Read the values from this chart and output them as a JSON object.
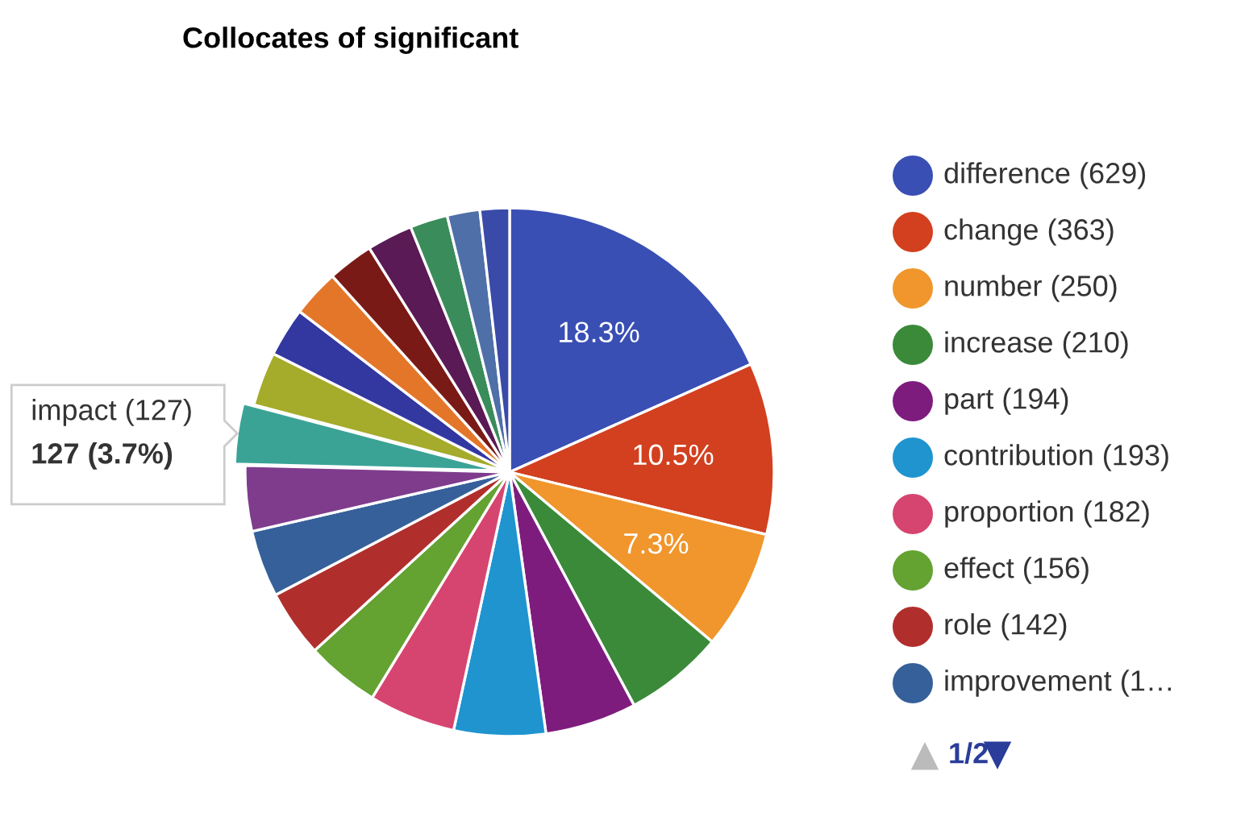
{
  "chart_data": {
    "type": "pie",
    "title": "Collocates of significant",
    "categories": [
      "difference (629)",
      "change (363)",
      "number (250)",
      "increase (210)",
      "part (194)",
      "contribution (193)",
      "proportion (182)",
      "effect (156)",
      "role (142)",
      "improvement (1…",
      null,
      "impact (127)",
      null,
      null,
      null,
      null,
      null,
      null,
      null,
      null
    ],
    "values": [
      18.3,
      10.5,
      7.3,
      6.1,
      5.6,
      5.6,
      5.3,
      4.5,
      4.1,
      4.1,
      4.0,
      3.7,
      3.3,
      3.0,
      2.9,
      2.8,
      2.8,
      2.3,
      2.0,
      1.8
    ],
    "colors": [
      "#3a4fb4",
      "#d2401f",
      "#f0962c",
      "#3a8a3a",
      "#7e1c7e",
      "#1f94cf",
      "#d6456f",
      "#64a232",
      "#b02f2c",
      "#36609a",
      "#7f3c8d",
      "#3aa396",
      "#a5ab2a",
      "#3337a0",
      "#e4762a",
      "#7a1a16",
      "#5a1a55",
      "#3a8c5a",
      "#4f6fa8",
      "#3a4aa8"
    ],
    "value_labels": [
      "18.3%",
      "10.5%",
      "7.3%",
      null,
      null,
      null,
      null,
      null,
      null,
      null,
      null,
      null,
      null,
      null,
      null,
      null,
      null,
      null,
      null,
      null
    ],
    "legend": "right",
    "annotations": [
      "127 (3.7%)",
      "1/2"
    ]
  }
}
